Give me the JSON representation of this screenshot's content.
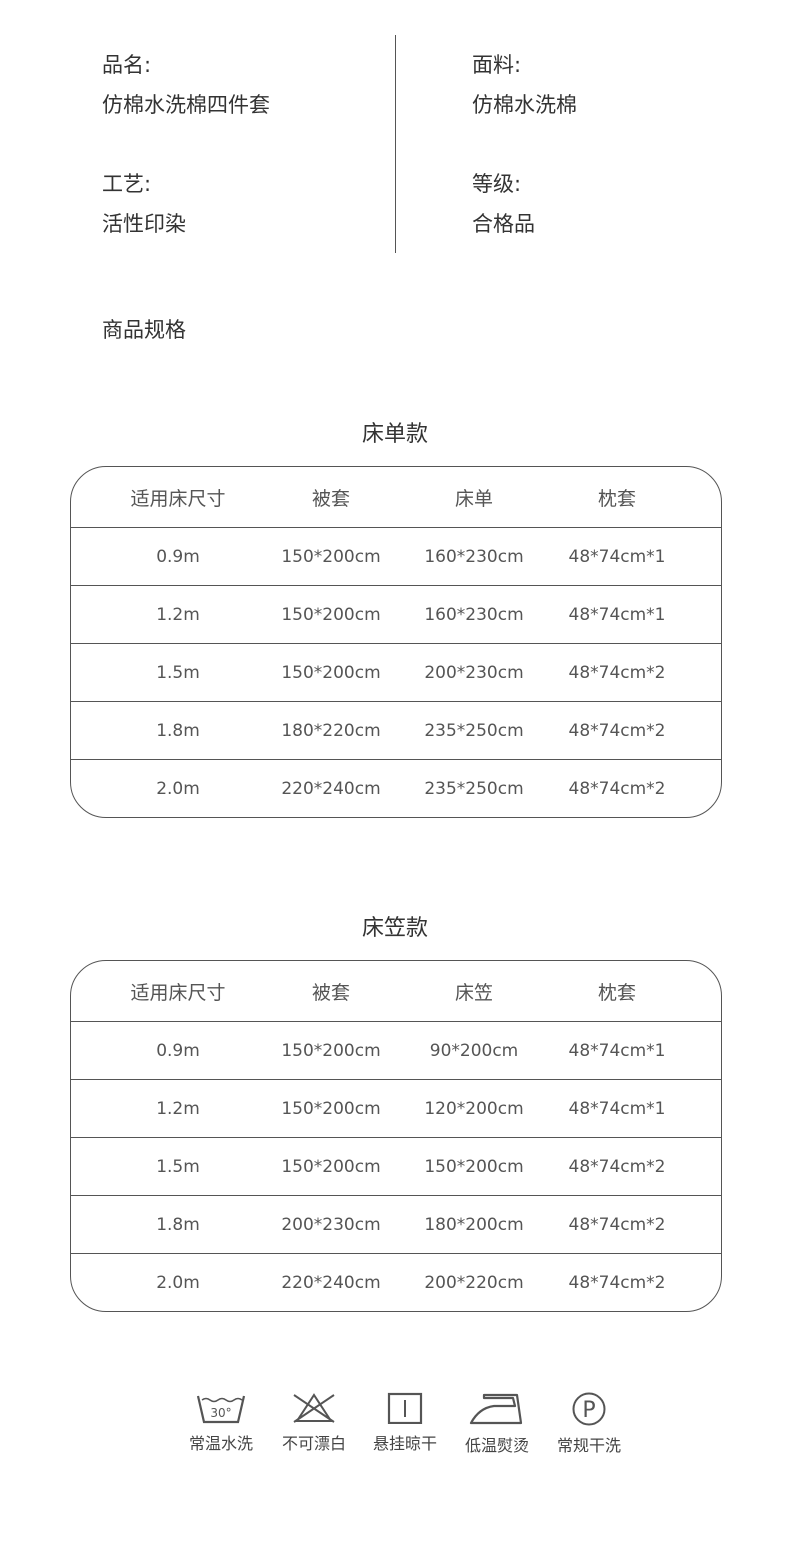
{
  "info": [
    {
      "label": "品名:",
      "value": "仿棉水洗棉四件套"
    },
    {
      "label": "面料:",
      "value": "仿棉水洗棉"
    },
    {
      "label": "工艺:",
      "value": "活性印染"
    },
    {
      "label": "等级:",
      "value": "合格品"
    }
  ],
  "spec_title": "商品规格",
  "tables": [
    {
      "title": "床单款",
      "headers": [
        "适用床尺寸",
        "被套",
        "床单",
        "枕套"
      ],
      "rows": [
        [
          "0.9m",
          "150*200cm",
          "160*230cm",
          "48*74cm*1"
        ],
        [
          "1.2m",
          "150*200cm",
          "160*230cm",
          "48*74cm*1"
        ],
        [
          "1.5m",
          "150*200cm",
          "200*230cm",
          "48*74cm*2"
        ],
        [
          "1.8m",
          "180*220cm",
          "235*250cm",
          "48*74cm*2"
        ],
        [
          "2.0m",
          "220*240cm",
          "235*250cm",
          "48*74cm*2"
        ]
      ]
    },
    {
      "title": "床笠款",
      "headers": [
        "适用床尺寸",
        "被套",
        "床笠",
        "枕套"
      ],
      "rows": [
        [
          "0.9m",
          "150*200cm",
          "90*200cm",
          "48*74cm*1"
        ],
        [
          "1.2m",
          "150*200cm",
          "120*200cm",
          "48*74cm*1"
        ],
        [
          "1.5m",
          "150*200cm",
          "150*200cm",
          "48*74cm*2"
        ],
        [
          "1.8m",
          "200*230cm",
          "180*200cm",
          "48*74cm*2"
        ],
        [
          "2.0m",
          "220*240cm",
          "200*220cm",
          "48*74cm*2"
        ]
      ]
    }
  ],
  "care": [
    {
      "icon": "wash-30-icon",
      "label": "常温水洗",
      "temp": "30°"
    },
    {
      "icon": "no-bleach-icon",
      "label": "不可漂白"
    },
    {
      "icon": "hang-dry-icon",
      "label": "悬挂晾干"
    },
    {
      "icon": "low-iron-icon",
      "label": "低温熨烫"
    },
    {
      "icon": "dry-clean-p-icon",
      "label": "常规干洗",
      "letter": "P"
    }
  ]
}
